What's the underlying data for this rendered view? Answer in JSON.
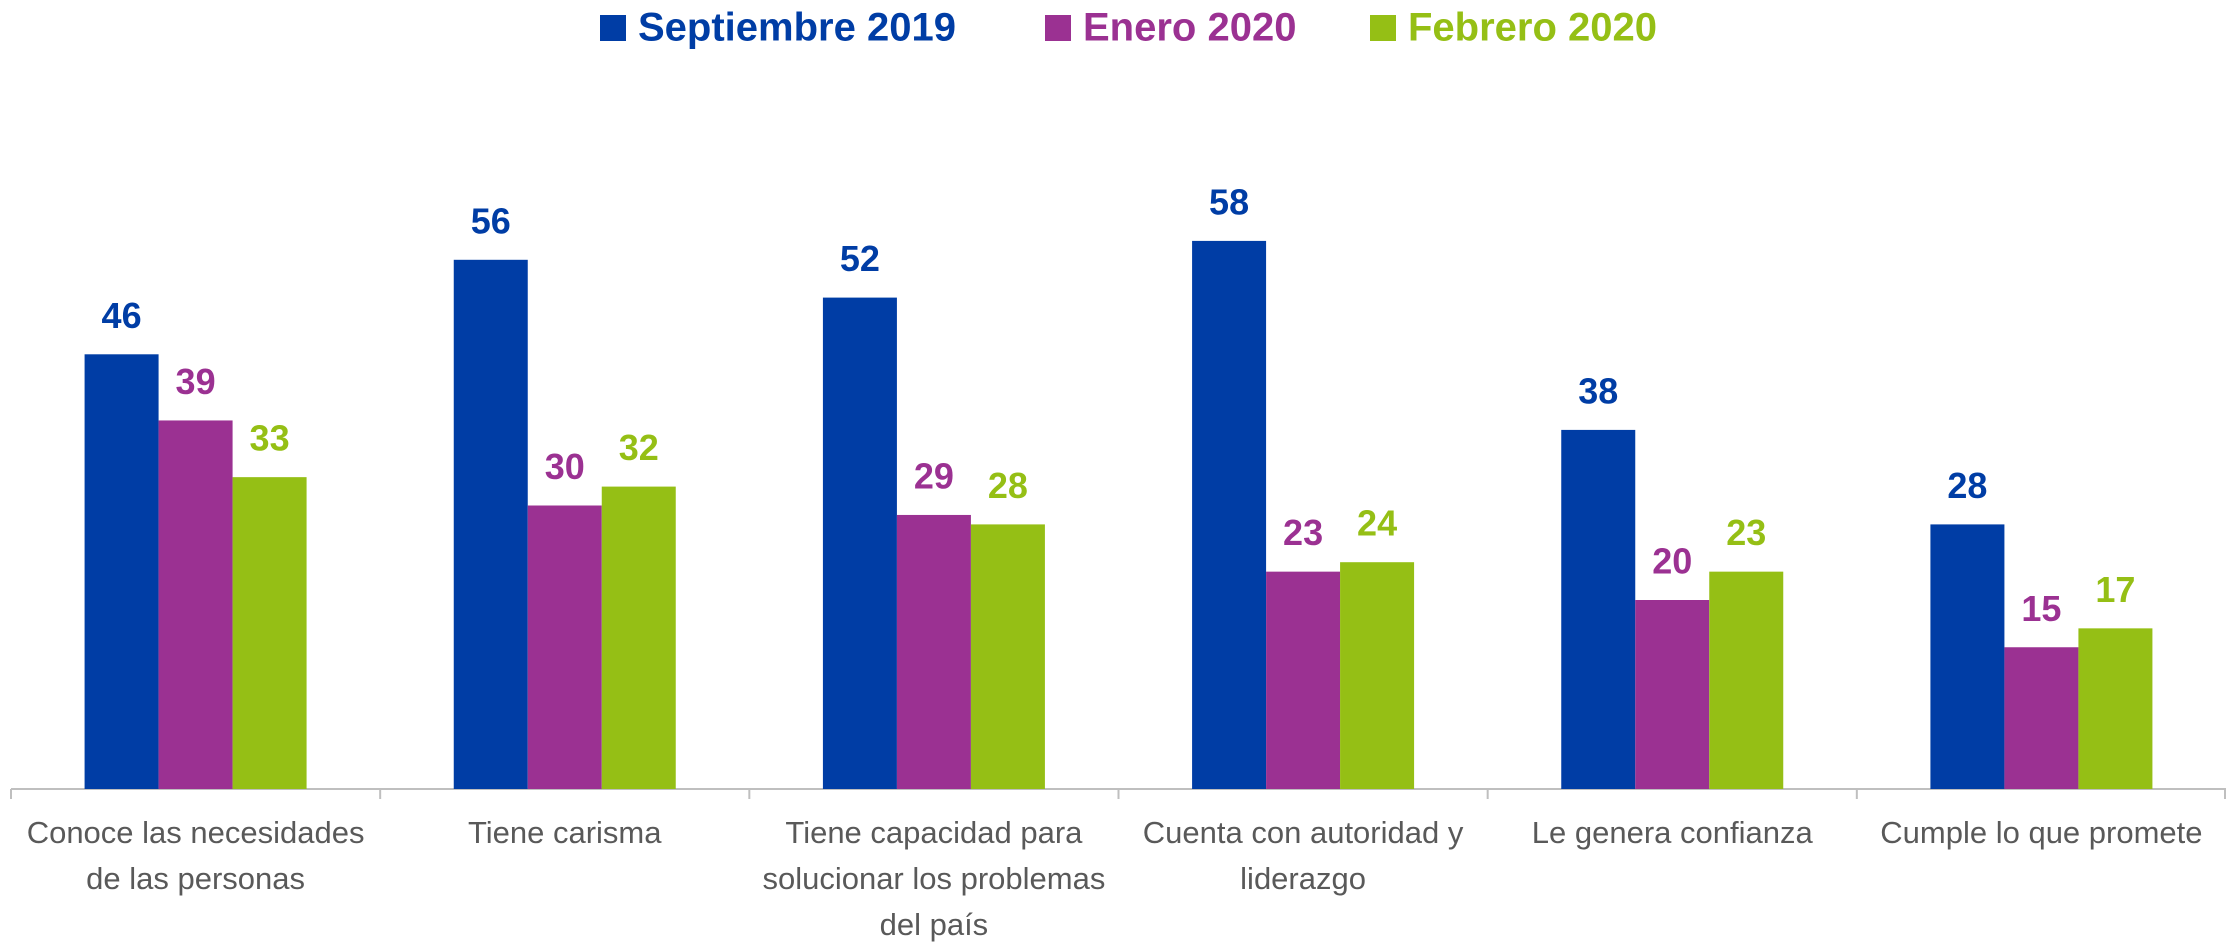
{
  "chart_data": {
    "type": "bar",
    "categories": [
      "Conoce las necesidades de las personas",
      "Tiene carisma",
      "Tiene capacidad para solucionar los problemas del país",
      "Cuenta con autoridad y liderazgo",
      "Le genera confianza",
      "Cumple lo que promete"
    ],
    "series": [
      {
        "name": "Septiembre 2019",
        "color": "#003da5",
        "values": [
          46,
          56,
          52,
          58,
          38,
          28
        ]
      },
      {
        "name": "Enero 2020",
        "color": "#9b3192",
        "values": [
          39,
          30,
          29,
          23,
          20,
          15
        ]
      },
      {
        "name": "Febrero 2020",
        "color": "#95bf15",
        "values": [
          33,
          32,
          28,
          24,
          23,
          17
        ]
      }
    ],
    "ylim": [
      0,
      60
    ],
    "legend": "top"
  }
}
